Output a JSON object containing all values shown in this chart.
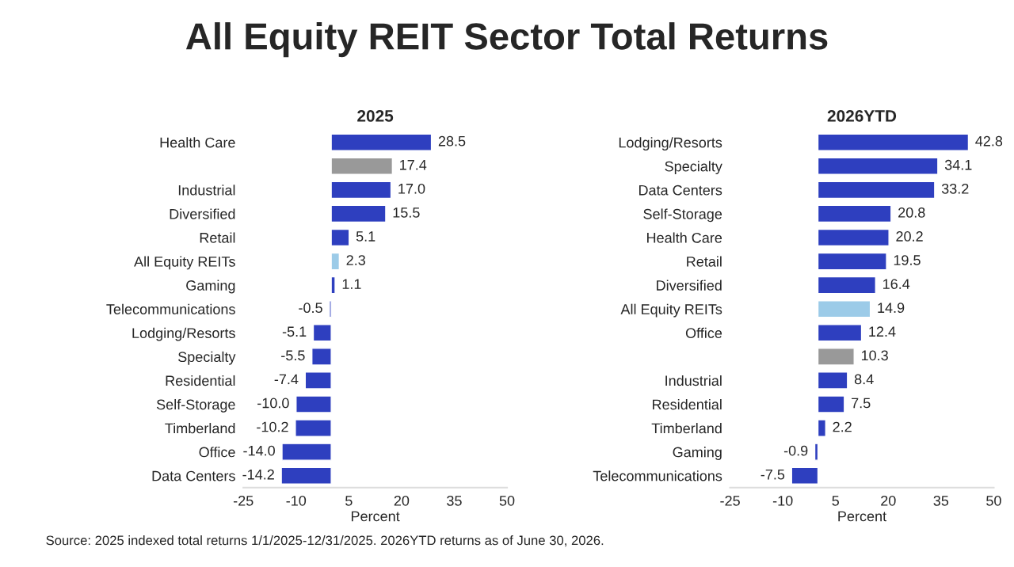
{
  "chart_data": [
    {
      "type": "other",
      "title": "All Equity REIT Sector Total Returns",
      "annotations": [
        "Source: 2025 indexed total returns 1/1/2025-12/31/2025. 2026YTD returns as of June 30, 2026."
      ]
    },
    {
      "type": "bar",
      "orientation": "horizontal",
      "title": "2025",
      "xlabel": "Percent",
      "categories": [
        "Health Care",
        null,
        "Industrial",
        "Diversified",
        "Retail",
        "All Equity REITs",
        "Gaming",
        "Telecommunications",
        "Lodging/Resorts",
        "Specialty",
        "Residential",
        "Self-Storage",
        "Timberland",
        "Office",
        "Data Centers"
      ],
      "values": [
        28.5,
        17.4,
        17.0,
        15.5,
        5.1,
        2.3,
        1.1,
        -0.5,
        -5.1,
        -5.5,
        -7.4,
        -10.0,
        -10.2,
        -14.0,
        -14.2
      ],
      "colors": [
        "#2e3fbf",
        "#999999",
        "#2e3fbf",
        "#2e3fbf",
        "#2e3fbf",
        "#9ccbe8",
        "#2e3fbf",
        "#2e3fbf",
        "#2e3fbf",
        "#2e3fbf",
        "#2e3fbf",
        "#2e3fbf",
        "#2e3fbf",
        "#2e3fbf",
        "#2e3fbf"
      ],
      "value_labels": [
        "28.5",
        "17.4",
        "17.0",
        "15.5",
        "5.1",
        "2.3",
        "1.1",
        "-0.5",
        "-5.1",
        "-5.5",
        "-7.4",
        "-10.0",
        "-10.2",
        "-14.0",
        "-14.2"
      ],
      "xlim": [
        -25,
        50
      ],
      "xticks": [
        -25,
        -10,
        5,
        20,
        35,
        50
      ],
      "grid": false
    },
    {
      "type": "bar",
      "orientation": "horizontal",
      "title": "2026YTD",
      "xlabel": "Percent",
      "categories": [
        "Lodging/Resorts",
        "Specialty",
        "Data Centers",
        "Self-Storage",
        "Health Care",
        "Retail",
        "Diversified",
        "All Equity REITs",
        "Office",
        null,
        "Industrial",
        "Residential",
        "Timberland",
        "Gaming",
        "Telecommunications"
      ],
      "values": [
        42.8,
        34.1,
        33.2,
        20.8,
        20.2,
        19.5,
        16.4,
        14.9,
        12.4,
        10.3,
        8.4,
        7.5,
        2.2,
        -0.9,
        -7.5
      ],
      "colors": [
        "#2e3fbf",
        "#2e3fbf",
        "#2e3fbf",
        "#2e3fbf",
        "#2e3fbf",
        "#2e3fbf",
        "#2e3fbf",
        "#9ccbe8",
        "#2e3fbf",
        "#999999",
        "#2e3fbf",
        "#2e3fbf",
        "#2e3fbf",
        "#2e3fbf",
        "#2e3fbf"
      ],
      "xlim": [
        -25,
        50
      ],
      "xticks": [
        -25,
        -10,
        5,
        20,
        35,
        50
      ],
      "data_labels": true,
      "grid": false
    }
  ]
}
